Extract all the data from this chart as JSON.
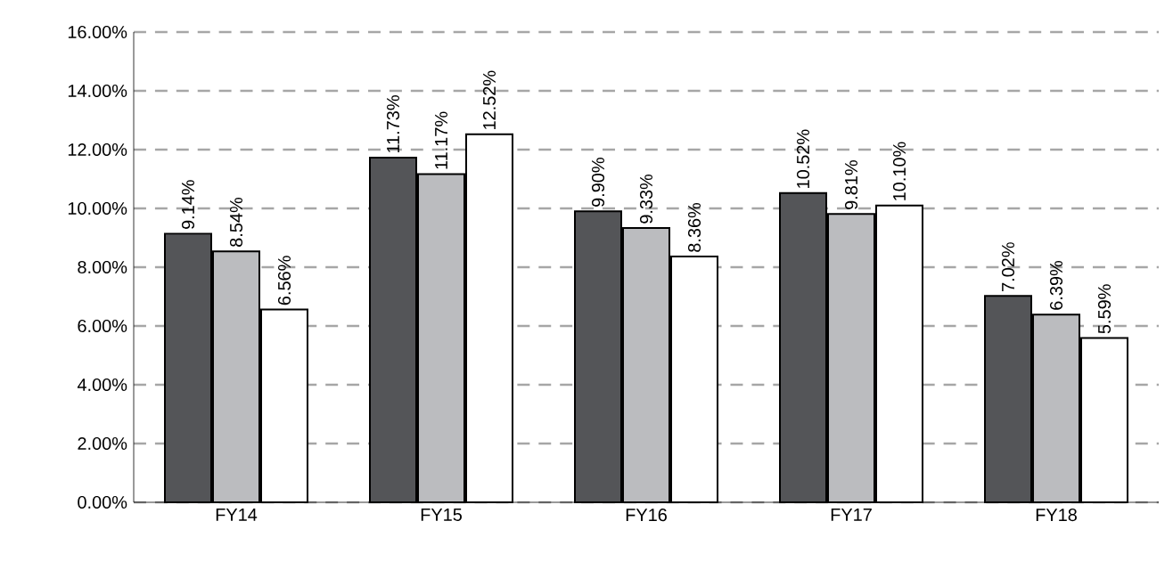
{
  "chart_data": {
    "type": "bar",
    "categories": [
      "FY14",
      "FY15",
      "FY16",
      "FY17",
      "FY18"
    ],
    "series": [
      {
        "color": "#545558",
        "values": [
          9.14,
          11.73,
          9.9,
          10.52,
          7.02
        ],
        "value_labels": [
          "9.14%",
          "11.73%",
          "9.90%",
          "10.52%",
          "7.02%"
        ]
      },
      {
        "color": "#bbbcbf",
        "values": [
          8.54,
          11.17,
          9.33,
          9.81,
          6.39
        ],
        "value_labels": [
          "8.54%",
          "11.17%",
          "9.33%",
          "9.81%",
          "6.39%"
        ]
      },
      {
        "color": "#ffffff",
        "values": [
          6.56,
          12.52,
          8.36,
          10.1,
          5.59
        ],
        "value_labels": [
          "6.56%",
          "12.52%",
          "8.36%",
          "10.10%",
          "5.59%"
        ]
      }
    ],
    "ylim": [
      0,
      16
    ],
    "yticks": [
      {
        "value": 0,
        "label": "0.00%"
      },
      {
        "value": 2,
        "label": "2.00%"
      },
      {
        "value": 4,
        "label": "4.00%"
      },
      {
        "value": 6,
        "label": "6.00%"
      },
      {
        "value": 8,
        "label": "8.00%"
      },
      {
        "value": 10,
        "label": "10.00%"
      },
      {
        "value": 12,
        "label": "12.00%"
      },
      {
        "value": 14,
        "label": "14.00%"
      },
      {
        "value": 16,
        "label": "16.00%"
      }
    ],
    "grid": "y"
  }
}
